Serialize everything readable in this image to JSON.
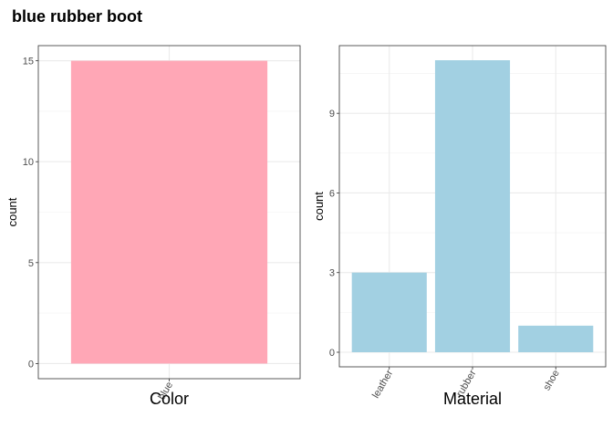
{
  "title": "blue rubber boot",
  "chart_data": [
    {
      "type": "bar",
      "categories": [
        "blue"
      ],
      "values": [
        15
      ],
      "xlabel": "Color",
      "ylabel": "count",
      "ylim": [
        -0.75,
        15.75
      ],
      "yticks": [
        0,
        5,
        10,
        15
      ],
      "bar_color": "#FFA7B6",
      "grid": true
    },
    {
      "type": "bar",
      "categories": [
        "leather",
        "rubber",
        "shoe"
      ],
      "values": [
        3,
        11,
        1
      ],
      "xlabel": "Material",
      "ylabel": "count",
      "ylim": [
        -0.55,
        11.55
      ],
      "yticks": [
        0,
        3,
        6,
        9
      ],
      "bar_color": "#A2D0E2",
      "grid": true
    }
  ]
}
